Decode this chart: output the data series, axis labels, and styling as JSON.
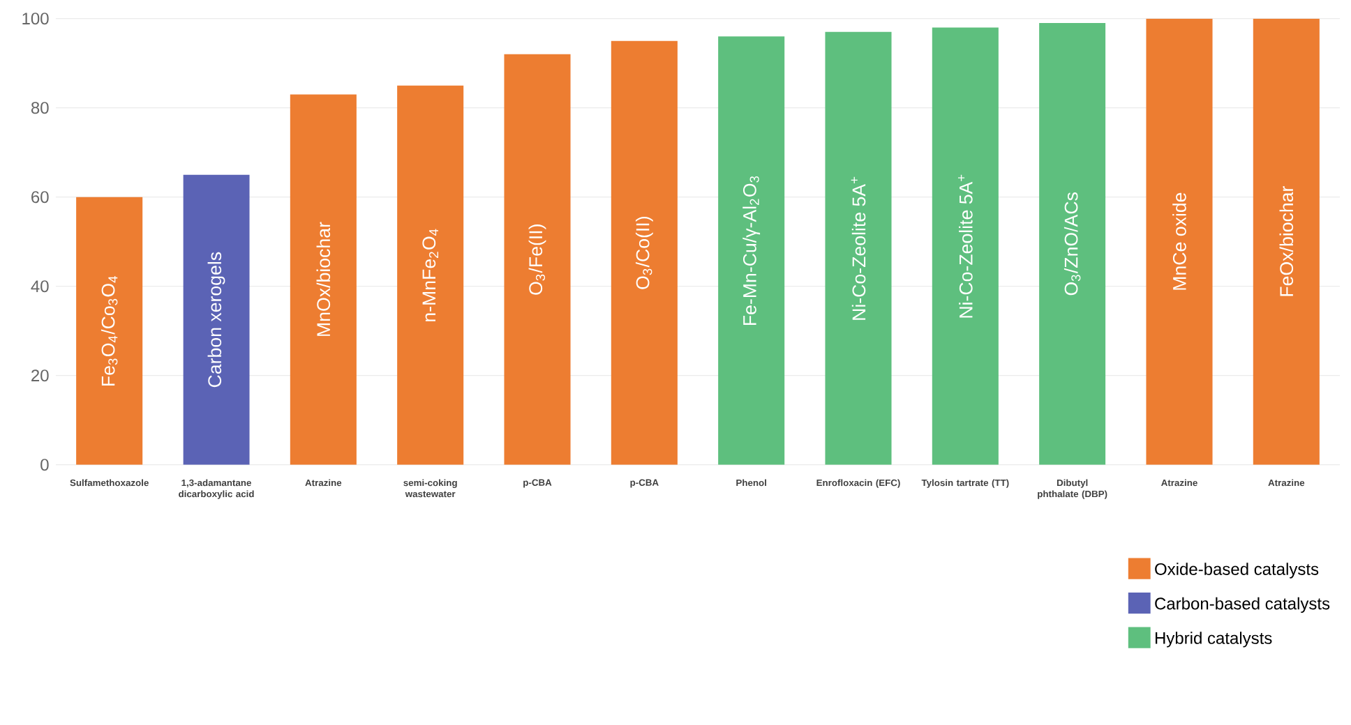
{
  "chart_data": {
    "type": "bar",
    "categories": [
      "Sulfamethoxazole",
      "1,3-adamantane dicarboxylic acid",
      "Atrazine",
      "semi-coking wastewater",
      "p-CBA",
      "p-CBA",
      "Phenol",
      "Enrofloxacin (EFC)",
      "Tylosin tartrate (TT)",
      "Dibutyl phthalate (DBP)",
      "Atrazine",
      "Atrazine"
    ],
    "series": [
      {
        "name": "Oxide-based catalysts",
        "color": "#ed7d31",
        "values": [
          60,
          null,
          83,
          85,
          92,
          95,
          null,
          null,
          null,
          null,
          100,
          100
        ]
      },
      {
        "name": "Carbon-based catalysts",
        "color": "#5b63b5",
        "values": [
          null,
          65,
          null,
          null,
          null,
          null,
          null,
          null,
          null,
          null,
          null,
          null
        ]
      },
      {
        "name": "Hybrid catalysts",
        "color": "#5ebf7e",
        "values": [
          null,
          null,
          null,
          null,
          null,
          null,
          96,
          97,
          98,
          99,
          null,
          null
        ]
      }
    ],
    "annotations": [
      "Fe$_{3}$O$_{4}$/Co$_{3}$O$_{4}$",
      "Carbon xerogels",
      "MnOx/biochar",
      "n-MnFe$_{2}$O$_{4}$",
      "O$_{3}$/Fe(II)",
      "O$_{3}$/Co(II)",
      "Fe-Mn-Cu/γ-Al$_{2}$O$_{3}$",
      "Ni-Co-Zeolite 5A$^{+}$",
      "Ni-Co-Zeolite 5A$^{+}$",
      "O$_{3}$/ZnO/ACs",
      "MnCe oxide",
      "FeOx/biochar"
    ],
    "ylim": [
      0,
      100
    ],
    "yticks": [
      0,
      20,
      40,
      60,
      80,
      100
    ],
    "grid": "y",
    "legend": "bottom right"
  }
}
